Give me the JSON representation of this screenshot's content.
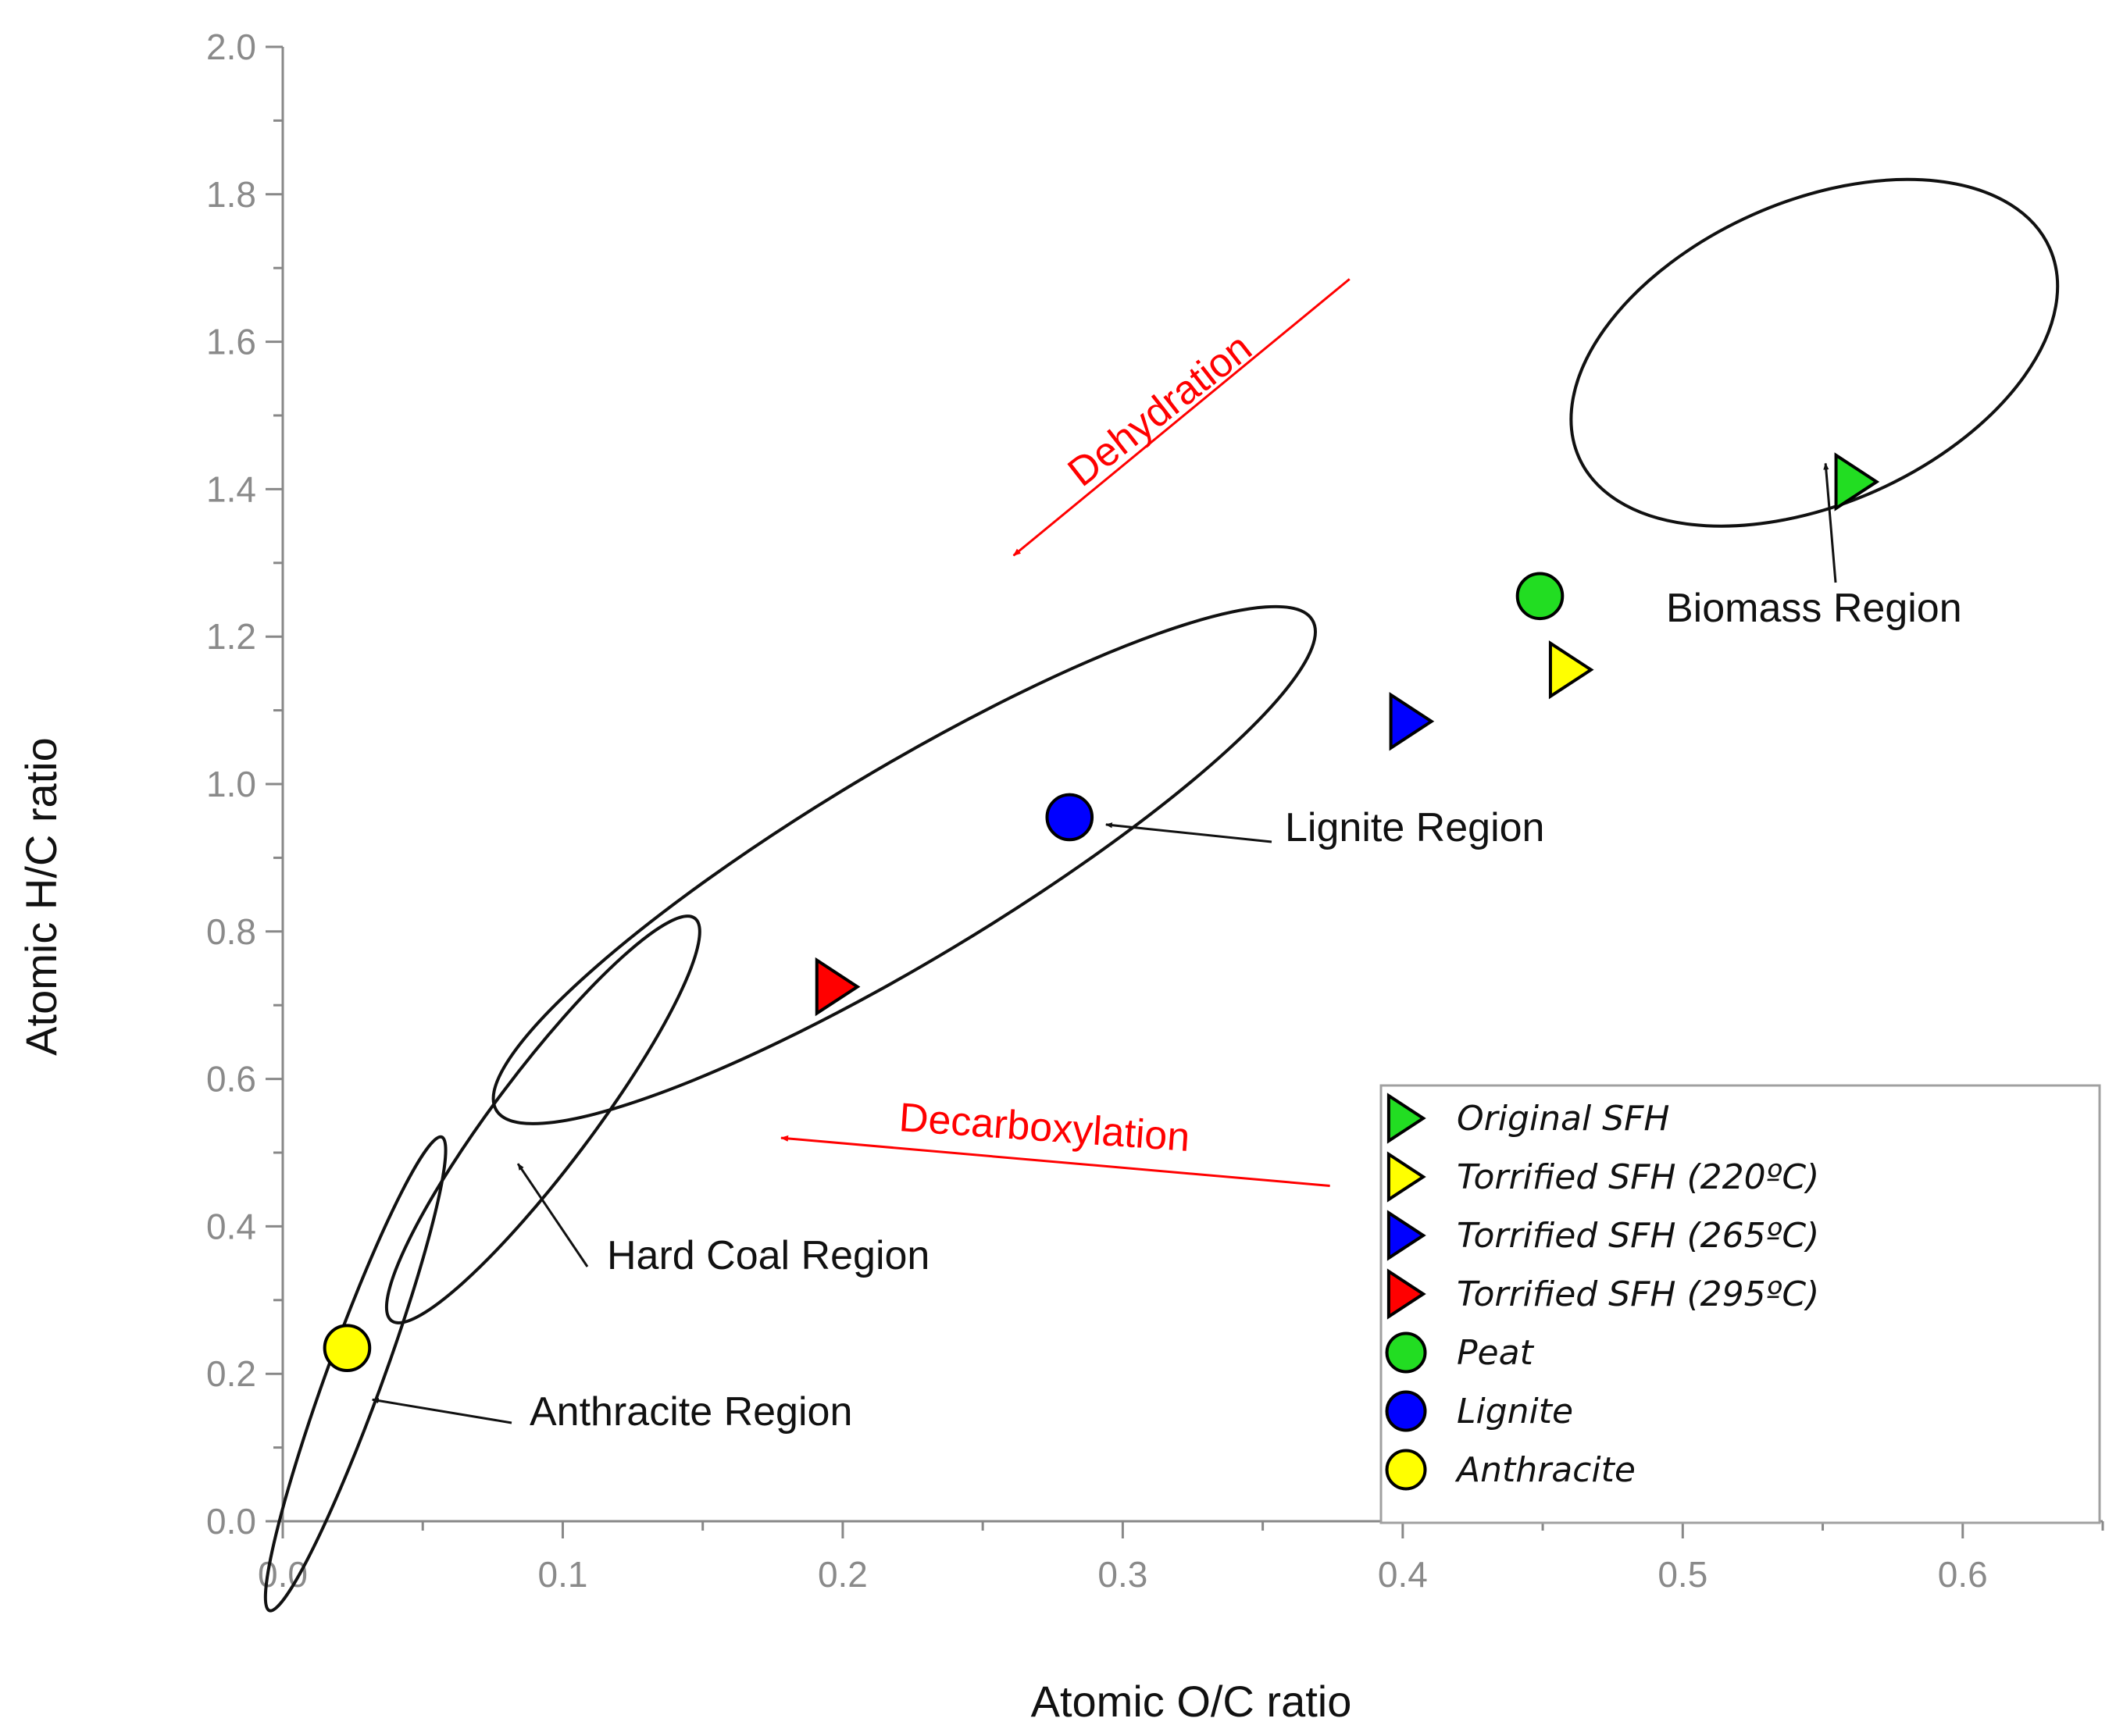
{
  "chart_data": {
    "type": "scatter",
    "title": "",
    "xlabel": "Atomic O/C ratio",
    "ylabel": "Atomic H/C ratio",
    "xlim": [
      0.0,
      0.65
    ],
    "ylim": [
      0.0,
      2.0
    ],
    "x_ticks": [
      "0.0",
      "0.1",
      "0.2",
      "0.3",
      "0.4",
      "0.5",
      "0.6"
    ],
    "y_ticks": [
      "0.0",
      "0.2",
      "0.4",
      "0.6",
      "0.8",
      "1.0",
      "1.2",
      "1.4",
      "1.6",
      "1.8",
      "2.0"
    ],
    "grid": false,
    "legend_position": "bottom-right",
    "series": [
      {
        "name": "Original SFH",
        "marker": "triangle-right",
        "color": "#22dd22",
        "x": [
          0.562
        ],
        "y": [
          1.41
        ]
      },
      {
        "name": "Torrified SFH (220ºC)",
        "marker": "triangle-right",
        "color": "#ffff00",
        "x": [
          0.46
        ],
        "y": [
          1.155
        ]
      },
      {
        "name": "Torrified SFH (265ºC)",
        "marker": "triangle-right",
        "color": "#0000ff",
        "x": [
          0.403
        ],
        "y": [
          1.085
        ]
      },
      {
        "name": "Torrified SFH (295ºC)",
        "marker": "triangle-right",
        "color": "#ff0000",
        "x": [
          0.198
        ],
        "y": [
          0.725
        ]
      },
      {
        "name": "Peat",
        "marker": "circle",
        "color": "#22dd22",
        "x": [
          0.449
        ],
        "y": [
          1.255
        ]
      },
      {
        "name": "Lignite",
        "marker": "circle",
        "color": "#0000ff",
        "x": [
          0.281
        ],
        "y": [
          0.955
        ]
      },
      {
        "name": "Anthracite",
        "marker": "circle",
        "color": "#ffff00",
        "x": [
          0.023
        ],
        "y": [
          0.235
        ]
      }
    ],
    "regions": [
      {
        "name": "Biomass Region",
        "center": [
          0.547,
          1.585
        ],
        "semi_axes": [
          0.092,
          0.205
        ],
        "angle_deg": -24
      },
      {
        "name": "Lignite Region",
        "center": [
          0.222,
          0.89
        ],
        "semi_axes": [
          0.17,
          0.13
        ],
        "angle_deg": -31
      },
      {
        "name": "Hard Coal Region",
        "center": [
          0.093,
          0.545
        ],
        "semi_axes": [
          0.09,
          0.066
        ],
        "angle_deg": -53
      },
      {
        "name": "Anthracite Region",
        "center": [
          0.026,
          0.2
        ],
        "semi_axes": [
          0.09,
          0.038
        ],
        "angle_deg": -70
      }
    ],
    "annotations": [
      {
        "text": "Biomass Region",
        "points_to": [
          0.551,
          1.435
        ]
      },
      {
        "text": "Lignite Region",
        "points_to": [
          0.294,
          0.945
        ]
      },
      {
        "text": "Hard Coal Region",
        "points_to": [
          0.084,
          0.485
        ]
      },
      {
        "text": "Anthracite Region",
        "points_to": [
          0.032,
          0.165
        ]
      },
      {
        "text": "Dehydration",
        "color": "#ff0000",
        "arrow_from": [
          0.381,
          1.685
        ],
        "arrow_to": [
          0.261,
          1.31
        ]
      },
      {
        "text": "Decarboxylation",
        "color": "#ff0000",
        "arrow_from": [
          0.374,
          0.455
        ],
        "arrow_to": [
          0.178,
          0.52
        ]
      }
    ]
  }
}
